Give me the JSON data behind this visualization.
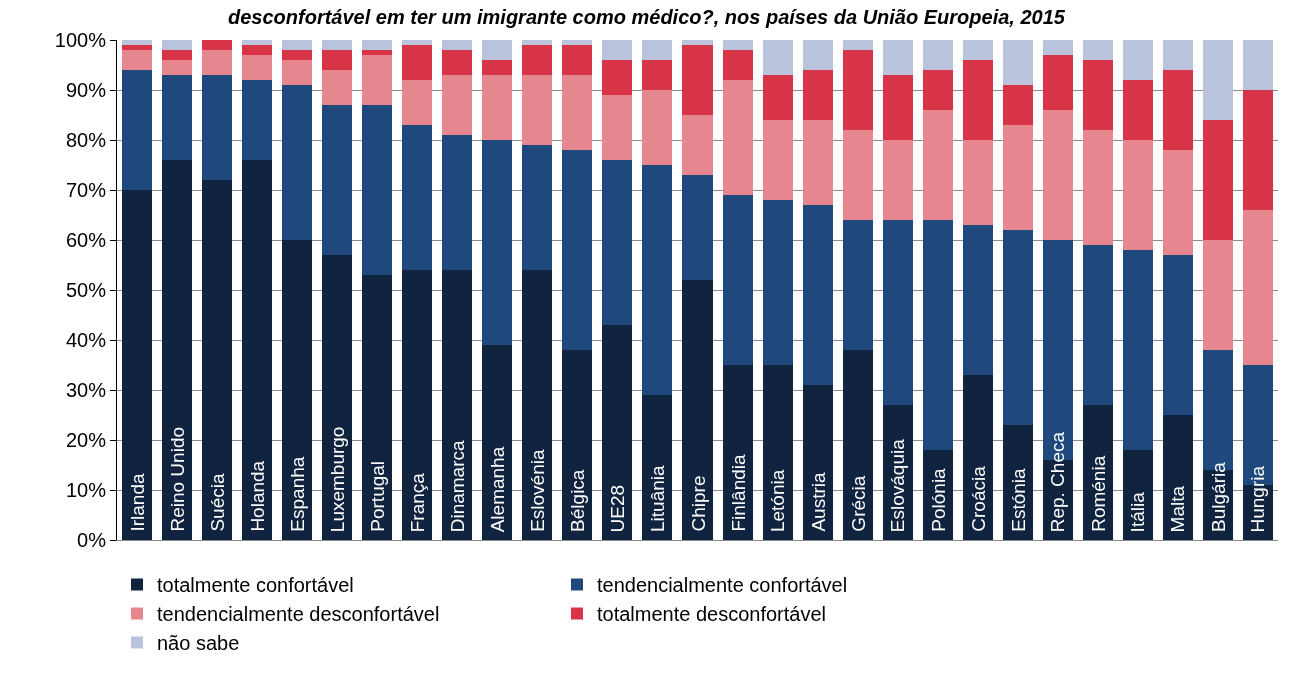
{
  "chart_data": {
    "type": "bar",
    "stacked": true,
    "title": "desconfortável em ter um imigrante como médico?, nos países da União Europeia, 2015",
    "categories": [
      "Irlanda",
      "Reino Unido",
      "Suécia",
      "Holanda",
      "Espanha",
      "Luxemburgo",
      "Portugal",
      "França",
      "Dinamarca",
      "Alemanha",
      "Eslovénia",
      "Bélgica",
      "UE28",
      "Lituânia",
      "Chipre",
      "Finlândia",
      "Letónia",
      "Austria",
      "Grécia",
      "Eslováquia",
      "Polónia",
      "Croácia",
      "Estónia",
      "Rep. Checa",
      "Roménia",
      "Itália",
      "Malta",
      "Bulgária",
      "Hungria"
    ],
    "series": [
      {
        "name": "totalmente confortável",
        "color": "#10243f",
        "values": [
          70,
          76,
          72,
          76,
          60,
          57,
          53,
          54,
          54,
          39,
          54,
          38,
          43,
          29,
          52,
          35,
          35,
          31,
          38,
          27,
          18,
          33,
          23,
          16,
          27,
          18,
          25,
          14,
          11
        ]
      },
      {
        "name": "tendencialmente confortável",
        "color": "#1f497d",
        "values": [
          24,
          17,
          21,
          16,
          31,
          30,
          34,
          29,
          27,
          41,
          25,
          40,
          33,
          46,
          21,
          34,
          33,
          36,
          26,
          37,
          46,
          30,
          39,
          44,
          32,
          40,
          32,
          24,
          24
        ]
      },
      {
        "name": "tendencialmente desconfortável",
        "color": "#e6868e",
        "values": [
          4,
          3,
          5,
          5,
          5,
          7,
          10,
          9,
          12,
          13,
          14,
          15,
          13,
          15,
          12,
          23,
          16,
          17,
          18,
          16,
          22,
          17,
          21,
          26,
          23,
          22,
          21,
          22,
          31
        ]
      },
      {
        "name": "totalmente desconfortável",
        "color": "#d73447",
        "values": [
          1,
          2,
          2,
          2,
          2,
          4,
          1,
          7,
          5,
          3,
          6,
          6,
          7,
          6,
          14,
          6,
          9,
          10,
          16,
          13,
          8,
          16,
          8,
          11,
          14,
          12,
          16,
          24,
          24
        ]
      },
      {
        "name": "não sabe",
        "color": "#b9c4dc",
        "values": [
          1,
          2,
          0,
          1,
          2,
          2,
          2,
          1,
          2,
          4,
          1,
          1,
          4,
          4,
          1,
          2,
          7,
          6,
          2,
          7,
          6,
          4,
          9,
          3,
          4,
          8,
          6,
          16,
          10
        ]
      }
    ],
    "ylim": [
      0,
      100
    ],
    "yticks": [
      {
        "value": 0,
        "label": "0%"
      },
      {
        "value": 10,
        "label": "10%"
      },
      {
        "value": 20,
        "label": "20%"
      },
      {
        "value": 30,
        "label": "30%"
      },
      {
        "value": 40,
        "label": "40%"
      },
      {
        "value": 50,
        "label": "50%"
      },
      {
        "value": 60,
        "label": "60%"
      },
      {
        "value": 70,
        "label": "70%"
      },
      {
        "value": 80,
        "label": "80%"
      },
      {
        "value": 90,
        "label": "90%"
      },
      {
        "value": 100,
        "label": "100%"
      }
    ],
    "grid": "y",
    "legend": "bottom"
  }
}
